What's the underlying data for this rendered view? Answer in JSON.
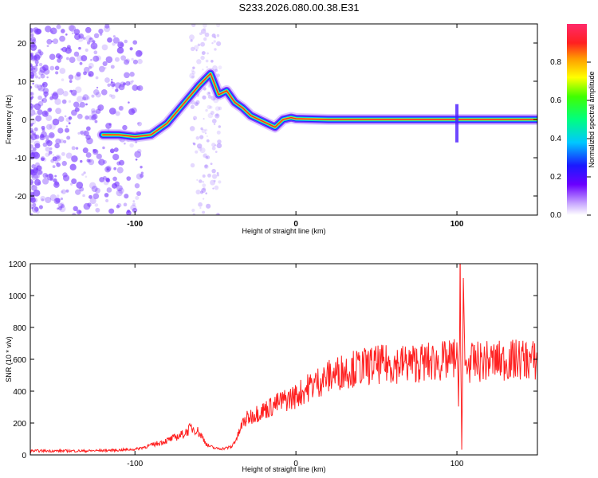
{
  "title": "S233.2026.080.00.38.E31",
  "colors": {
    "snr_line": "#ff2020",
    "track_core": "#e8243c",
    "scatter": "#7a3cff"
  },
  "chart_data": [
    {
      "type": "heatmap",
      "xlabel": "Height of straight line (km)",
      "ylabel": "Frequency (Hz)",
      "xlim": [
        -165,
        150
      ],
      "ylim": [
        -25,
        25
      ],
      "xticks": [
        -100,
        0,
        100
      ],
      "yticks": [
        20,
        10,
        0,
        -10,
        -20
      ],
      "colorbar": {
        "label": "Normalized spectral amplitude",
        "range": [
          0,
          1
        ],
        "ticks": [
          "0.0",
          "0.2",
          "0.4",
          "0.6",
          "0.8"
        ],
        "colormap": "rainbow (purple to red)"
      },
      "track": {
        "x": [
          -120,
          -110,
          -100,
          -90,
          -80,
          -70,
          -60,
          -53,
          -48,
          -43,
          -38,
          -33,
          -28,
          -23,
          -18,
          -13,
          -8,
          -3,
          0,
          20,
          60,
          100,
          140,
          150
        ],
        "y": [
          -4,
          -4,
          -4.5,
          -4,
          -1,
          4,
          9,
          12,
          6.5,
          7.5,
          4.5,
          3,
          1,
          0,
          -1,
          -2,
          0,
          0.5,
          0.2,
          0,
          0,
          0,
          0,
          0
        ]
      },
      "grid": false
    },
    {
      "type": "line",
      "xlabel": "Height of straight line (km)",
      "ylabel": "SNR (10 * v/v)",
      "xlim": [
        -165,
        150
      ],
      "ylim": [
        0,
        1200
      ],
      "xticks": [
        -100,
        0,
        100
      ],
      "yticks": [
        0,
        200,
        400,
        600,
        800,
        1000,
        1200
      ],
      "series": [
        {
          "x": [
            -165,
            -150,
            -130,
            -110,
            -100,
            -90,
            -80,
            -70,
            -65,
            -62,
            -58,
            -55,
            -50,
            -45,
            -40,
            -36,
            -33,
            -30,
            -25,
            -20,
            -10,
            0,
            10,
            20,
            30,
            40,
            50,
            60,
            80,
            95,
            100,
            101,
            102,
            103,
            104,
            105,
            110,
            120,
            130,
            140,
            150
          ],
          "y": [
            25,
            25,
            25,
            30,
            35,
            60,
            90,
            130,
            170,
            160,
            110,
            60,
            40,
            40,
            50,
            120,
            200,
            230,
            260,
            280,
            330,
            370,
            440,
            490,
            530,
            550,
            565,
            570,
            580,
            590,
            620,
            300,
            1200,
            30,
            950,
            560,
            580,
            590,
            590,
            600,
            590
          ]
        }
      ],
      "grid": false
    }
  ]
}
